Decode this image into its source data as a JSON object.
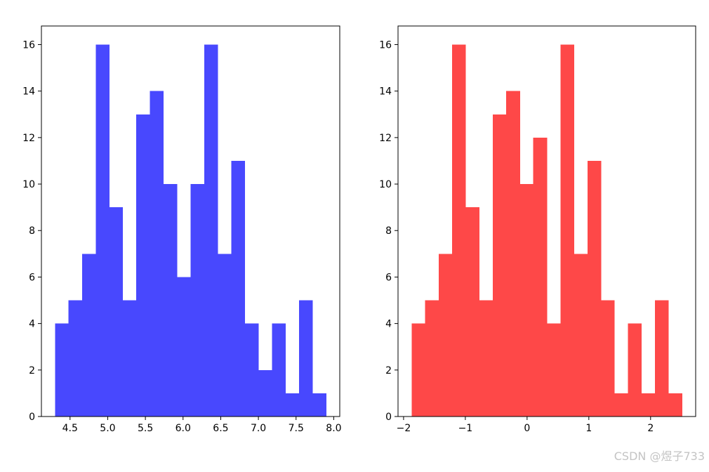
{
  "watermark": "CSDN @煜子733",
  "chart_data": [
    {
      "type": "bar",
      "title": "",
      "xlabel": "",
      "ylabel": "",
      "color": "#4848fe",
      "bin_edges": [
        4.3,
        4.48,
        4.66,
        4.84,
        5.02,
        5.2,
        5.38,
        5.56,
        5.74,
        5.92,
        6.1,
        6.28,
        6.46,
        6.64,
        6.82,
        7.0,
        7.18,
        7.36,
        7.54,
        7.72,
        7.9
      ],
      "values": [
        4,
        5,
        7,
        16,
        9,
        5,
        13,
        14,
        10,
        6,
        10,
        16,
        7,
        11,
        4,
        2,
        4,
        1,
        5,
        1
      ],
      "xticks": [
        4.5,
        5.0,
        5.5,
        6.0,
        6.5,
        7.0,
        7.5,
        8.0
      ],
      "xtick_labels": [
        "4.5",
        "5.0",
        "5.5",
        "6.0",
        "6.5",
        "7.0",
        "7.5",
        "8.0"
      ],
      "yticks": [
        0,
        2,
        4,
        6,
        8,
        10,
        12,
        14,
        16
      ],
      "ytick_labels": [
        "0",
        "2",
        "4",
        "6",
        "8",
        "10",
        "12",
        "14",
        "16"
      ],
      "xlim": [
        4.12,
        8.08
      ],
      "ylim": [
        0,
        16.8
      ],
      "grid": false
    },
    {
      "type": "bar",
      "title": "",
      "xlabel": "",
      "ylabel": "",
      "color": "#fe4848",
      "bin_edges": [
        -1.87,
        -1.651,
        -1.432,
        -1.213,
        -0.994,
        -0.775,
        -0.556,
        -0.337,
        -0.118,
        0.101,
        0.32,
        0.539,
        0.758,
        0.977,
        1.196,
        1.415,
        1.634,
        1.853,
        2.072,
        2.291,
        2.51
      ],
      "values": [
        4,
        5,
        7,
        16,
        9,
        5,
        13,
        14,
        10,
        12,
        4,
        16,
        7,
        11,
        5,
        1,
        4,
        1,
        5,
        1
      ],
      "xticks": [
        -2,
        -1,
        0,
        1,
        2
      ],
      "xtick_labels": [
        "−2",
        "−1",
        "0",
        "1",
        "2"
      ],
      "yticks": [
        0,
        2,
        4,
        6,
        8,
        10,
        12,
        14,
        16
      ],
      "ytick_labels": [
        "0",
        "2",
        "4",
        "6",
        "8",
        "10",
        "12",
        "14",
        "16"
      ],
      "xlim": [
        -2.09,
        2.73
      ],
      "ylim": [
        0,
        16.8
      ],
      "grid": false
    }
  ]
}
